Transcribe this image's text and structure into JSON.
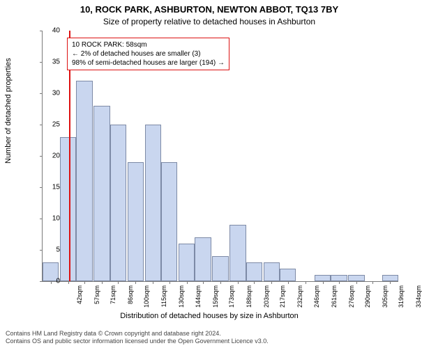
{
  "titles": {
    "line1": "10, ROCK PARK, ASHBURTON, NEWTON ABBOT, TQ13 7BY",
    "line2": "Size of property relative to detached houses in Ashburton"
  },
  "axes": {
    "ylabel": "Number of detached properties",
    "xlabel": "Distribution of detached houses by size in Ashburton",
    "ylim": [
      0,
      40
    ],
    "ytick_step": 5,
    "label_fontsize": 11,
    "tick_fontsize": 10
  },
  "chart": {
    "type": "histogram",
    "bar_fill": "#c9d6ef",
    "bar_border": "#7d8aa6",
    "bar_width_sqm": 14,
    "categories_sqm": [
      42,
      57,
      71,
      86,
      100,
      115,
      130,
      144,
      159,
      173,
      188,
      203,
      217,
      232,
      246,
      261,
      276,
      290,
      305,
      319,
      334
    ],
    "values": [
      3,
      23,
      32,
      28,
      25,
      19,
      25,
      19,
      6,
      7,
      4,
      9,
      3,
      3,
      2,
      0,
      1,
      1,
      1,
      0,
      1
    ],
    "xtick_suffix": "sqm"
  },
  "reference": {
    "at_sqm": 58,
    "line_color": "#dd1111",
    "annotation_border": "#dd1111",
    "lines": [
      "10 ROCK PARK: 58sqm",
      "← 2% of detached houses are smaller (3)",
      "98% of semi-detached houses are larger (194) →"
    ]
  },
  "footer": {
    "line1": "Contains HM Land Registry data © Crown copyright and database right 2024.",
    "line2": "Contains OS and public sector information licensed under the Open Government Licence v3.0."
  },
  "colors": {
    "axis": "#7a7a7a",
    "text": "#000000",
    "footer_text": "#444444",
    "background": "#ffffff"
  }
}
